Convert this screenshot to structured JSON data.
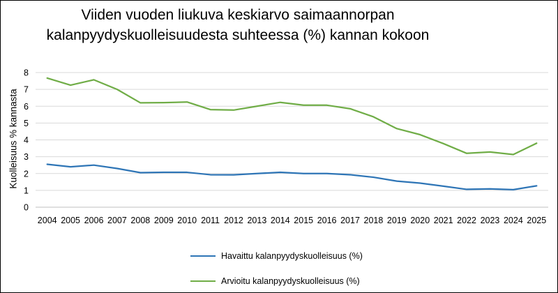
{
  "chart_data": {
    "type": "line",
    "title_lines": [
      "Viiden vuoden liukuva keskiarvo saimaannorpan",
      "kalanpyydyskuolleisuudesta suhteessa (%) kannan kokoon"
    ],
    "xlabel": "",
    "ylabel": "Kuolleisuus % kannasta",
    "ylim": [
      0,
      8
    ],
    "y_ticks": [
      "0",
      "1",
      "2",
      "3",
      "4",
      "5",
      "6",
      "7",
      "8"
    ],
    "grid": true,
    "legend_position": "bottom",
    "x": [
      "2004",
      "2005",
      "2006",
      "2007",
      "2008",
      "2009",
      "2010",
      "2011",
      "2012",
      "2013",
      "2014",
      "2015",
      "2016",
      "2017",
      "2018",
      "2019",
      "2020",
      "2021",
      "2022",
      "2023",
      "2024",
      "2025"
    ],
    "series": [
      {
        "name": "Havaittu kalanpyydyskuolleisuus (%)",
        "color": "#2e75b6",
        "values": [
          2.55,
          2.4,
          2.5,
          2.3,
          2.05,
          2.07,
          2.07,
          1.93,
          1.92,
          2.0,
          2.07,
          2.0,
          2.0,
          1.93,
          1.78,
          1.55,
          1.43,
          1.25,
          1.06,
          1.09,
          1.04,
          1.27
        ]
      },
      {
        "name": "Arvioitu kalanpyydyskuolleisuus (%)",
        "color": "#70ad47",
        "values": [
          7.67,
          7.25,
          7.57,
          7.0,
          6.2,
          6.21,
          6.25,
          5.8,
          5.77,
          6.0,
          6.23,
          6.06,
          6.06,
          5.85,
          5.37,
          4.67,
          4.31,
          3.78,
          3.2,
          3.28,
          3.13,
          3.8
        ]
      }
    ]
  }
}
